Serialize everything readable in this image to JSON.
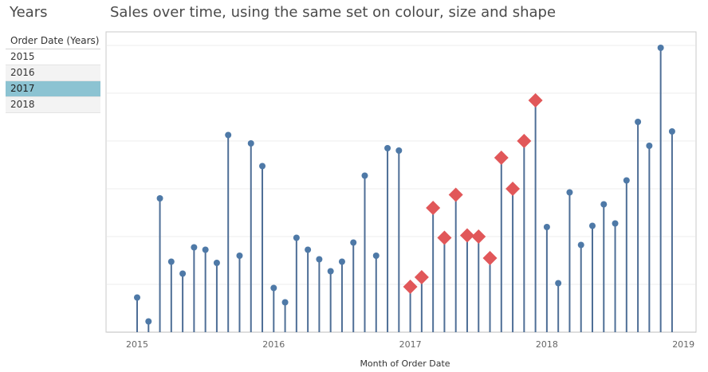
{
  "panel": {
    "title": "Years",
    "filter_header": "Order Date (Years)",
    "items": [
      {
        "label": "2015",
        "selected": false
      },
      {
        "label": "2016",
        "selected": false
      },
      {
        "label": "2017",
        "selected": true
      },
      {
        "label": "2018",
        "selected": false
      }
    ]
  },
  "colors": {
    "stem": "#4e6e96",
    "dot": "#4e79a7",
    "highlight": "#e15759",
    "selected_row": "#8cc3d2"
  },
  "chart_data": {
    "type": "lollipop",
    "title": "Sales over time, using the same set on colour, size and shape",
    "xlabel": "Month of Order Date",
    "ylabel": "",
    "x_tick_labels": [
      "2015",
      "2016",
      "2017",
      "2018",
      "2019"
    ],
    "ylim": [
      0,
      120
    ],
    "y_gridlines": [
      20,
      40,
      60,
      80,
      100,
      120
    ],
    "grid": true,
    "highlight_set": "2017",
    "highlight_shape": "diamond",
    "normal_shape": "circle",
    "series": [
      {
        "name": "2015",
        "values": [
          14.5,
          4.5,
          56,
          29.5,
          24.5,
          35.5,
          34.5,
          29,
          82.5,
          32,
          79,
          69.5
        ]
      },
      {
        "name": "2016",
        "values": [
          18.5,
          12.5,
          39.5,
          34.5,
          30.5,
          25.5,
          29.5,
          37.5,
          65.5,
          32,
          77,
          76
        ]
      },
      {
        "name": "2017",
        "values": [
          19,
          23,
          52,
          39.5,
          57.5,
          40.5,
          40,
          31,
          73,
          60,
          80,
          97
        ]
      },
      {
        "name": "2018",
        "values": [
          44,
          20.5,
          58.5,
          36.5,
          44.5,
          53.5,
          45.5,
          63.5,
          88,
          78,
          119,
          84
        ]
      }
    ]
  }
}
